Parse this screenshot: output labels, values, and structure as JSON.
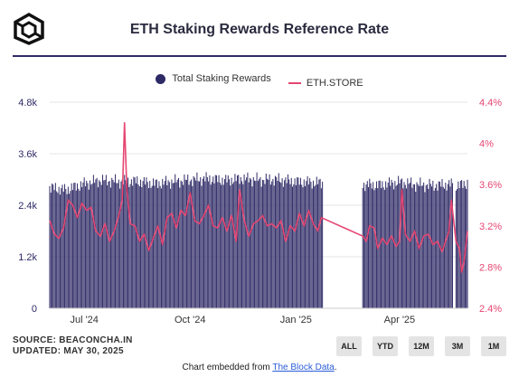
{
  "header": {
    "title": "ETH Staking Rewards Reference Rate"
  },
  "legend": {
    "bars_label": "Total Staking Rewards",
    "line_label": "ETH.STORE"
  },
  "colors": {
    "bars": "#2e2a66",
    "line": "#e64672",
    "left_axis": "#2e2a66",
    "right_axis": "#e64672"
  },
  "footer": {
    "source": "SOURCE: BEACONCHA.IN",
    "updated": "UPDATED: MAY 30, 2025",
    "embed_prefix": "Chart embedded from ",
    "embed_link": "The Block Data",
    "embed_suffix": "."
  },
  "range_buttons": [
    "ALL",
    "YTD",
    "12M",
    "3M",
    "1M"
  ],
  "chart_data": {
    "type": "bar",
    "x_start": "2024-06-01",
    "x_end": "2025-05-30",
    "x_ticks": [
      {
        "date": "2024-07-01",
        "label": "Jul '24"
      },
      {
        "date": "2024-10-01",
        "label": "Oct '24"
      },
      {
        "date": "2025-01-01",
        "label": "Jan '25"
      },
      {
        "date": "2025-04-01",
        "label": "Apr '25"
      }
    ],
    "y_left": {
      "ticks": [
        "0",
        "1.2k",
        "2.4k",
        "3.6k",
        "4.8k"
      ],
      "range": [
        0,
        4800
      ]
    },
    "y_right": {
      "ticks": [
        "2.4%",
        "2.8%",
        "3.2%",
        "3.6%",
        "4%",
        "4.4%"
      ],
      "range": [
        2.4,
        4.4
      ]
    },
    "grid": true,
    "legend_position": "top-center",
    "gaps": [
      {
        "from": "2025-01-24",
        "to": "2025-02-28"
      },
      {
        "from": "2025-05-17",
        "to": "2025-05-20"
      }
    ],
    "bars_series": {
      "name": "Total Staking Rewards",
      "anchors": [
        [
          "2024-06-01",
          2810
        ],
        [
          "2024-06-15",
          2760
        ],
        [
          "2024-07-01",
          2900
        ],
        [
          "2024-07-15",
          2980
        ],
        [
          "2024-08-01",
          2950
        ],
        [
          "2024-08-15",
          2960
        ],
        [
          "2024-09-01",
          2900
        ],
        [
          "2024-09-15",
          2950
        ],
        [
          "2024-10-01",
          2990
        ],
        [
          "2024-10-15",
          3020
        ],
        [
          "2024-11-01",
          2980
        ],
        [
          "2024-11-15",
          3020
        ],
        [
          "2024-12-01",
          2990
        ],
        [
          "2024-12-15",
          3000
        ],
        [
          "2025-01-01",
          2950
        ],
        [
          "2025-01-23",
          2920
        ],
        [
          "2025-03-01",
          2880
        ],
        [
          "2025-03-15",
          2870
        ],
        [
          "2025-04-01",
          2940
        ],
        [
          "2025-04-15",
          2880
        ],
        [
          "2025-05-01",
          2860
        ],
        [
          "2025-05-16",
          2890
        ],
        [
          "2025-05-21",
          2850
        ],
        [
          "2025-05-30",
          2920
        ]
      ]
    },
    "line_series": {
      "name": "ETH.STORE",
      "points": [
        [
          "2024-06-01",
          3.25
        ],
        [
          "2024-06-05",
          3.12
        ],
        [
          "2024-06-09",
          3.08
        ],
        [
          "2024-06-13",
          3.18
        ],
        [
          "2024-06-17",
          3.45
        ],
        [
          "2024-06-21",
          3.4
        ],
        [
          "2024-06-25",
          3.28
        ],
        [
          "2024-06-29",
          3.42
        ],
        [
          "2024-07-03",
          3.35
        ],
        [
          "2024-07-07",
          3.38
        ],
        [
          "2024-07-11",
          3.15
        ],
        [
          "2024-07-15",
          3.1
        ],
        [
          "2024-07-19",
          3.22
        ],
        [
          "2024-07-23",
          3.05
        ],
        [
          "2024-07-27",
          3.15
        ],
        [
          "2024-07-31",
          3.3
        ],
        [
          "2024-08-03",
          3.45
        ],
        [
          "2024-08-05",
          4.2
        ],
        [
          "2024-08-07",
          3.55
        ],
        [
          "2024-08-10",
          3.22
        ],
        [
          "2024-08-14",
          3.2
        ],
        [
          "2024-08-18",
          3.05
        ],
        [
          "2024-08-22",
          3.12
        ],
        [
          "2024-08-26",
          2.96
        ],
        [
          "2024-08-30",
          3.08
        ],
        [
          "2024-09-03",
          3.2
        ],
        [
          "2024-09-07",
          3.02
        ],
        [
          "2024-09-11",
          3.28
        ],
        [
          "2024-09-15",
          3.32
        ],
        [
          "2024-09-19",
          3.18
        ],
        [
          "2024-09-23",
          3.35
        ],
        [
          "2024-09-27",
          3.3
        ],
        [
          "2024-10-01",
          3.52
        ],
        [
          "2024-10-05",
          3.25
        ],
        [
          "2024-10-09",
          3.22
        ],
        [
          "2024-10-13",
          3.3
        ],
        [
          "2024-10-17",
          3.4
        ],
        [
          "2024-10-21",
          3.2
        ],
        [
          "2024-10-25",
          3.18
        ],
        [
          "2024-10-29",
          3.28
        ],
        [
          "2024-11-02",
          3.15
        ],
        [
          "2024-11-06",
          3.3
        ],
        [
          "2024-11-10",
          3.05
        ],
        [
          "2024-11-13",
          3.55
        ],
        [
          "2024-11-17",
          3.25
        ],
        [
          "2024-11-21",
          3.1
        ],
        [
          "2024-11-25",
          3.22
        ],
        [
          "2024-11-29",
          3.25
        ],
        [
          "2024-12-03",
          3.3
        ],
        [
          "2024-12-07",
          3.2
        ],
        [
          "2024-12-11",
          3.22
        ],
        [
          "2024-12-15",
          3.18
        ],
        [
          "2024-12-19",
          3.25
        ],
        [
          "2024-12-23",
          3.05
        ],
        [
          "2024-12-27",
          3.2
        ],
        [
          "2024-12-31",
          3.15
        ],
        [
          "2025-01-04",
          3.32
        ],
        [
          "2025-01-08",
          3.2
        ],
        [
          "2025-01-12",
          3.35
        ],
        [
          "2025-01-16",
          3.22
        ],
        [
          "2025-01-20",
          3.15
        ],
        [
          "2025-01-23",
          3.28
        ],
        [
          "2025-02-28",
          3.1
        ],
        [
          "2025-03-03",
          3.05
        ],
        [
          "2025-03-06",
          3.2
        ],
        [
          "2025-03-10",
          3.18
        ],
        [
          "2025-03-13",
          2.98
        ],
        [
          "2025-03-17",
          3.08
        ],
        [
          "2025-03-21",
          3.02
        ],
        [
          "2025-03-25",
          3.1
        ],
        [
          "2025-03-29",
          3.0
        ],
        [
          "2025-04-01",
          3.05
        ],
        [
          "2025-04-03",
          3.55
        ],
        [
          "2025-04-06",
          3.12
        ],
        [
          "2025-04-10",
          3.05
        ],
        [
          "2025-04-14",
          3.15
        ],
        [
          "2025-04-18",
          2.98
        ],
        [
          "2025-04-22",
          3.1
        ],
        [
          "2025-04-26",
          3.12
        ],
        [
          "2025-04-30",
          3.02
        ],
        [
          "2025-05-04",
          3.05
        ],
        [
          "2025-05-08",
          2.95
        ],
        [
          "2025-05-11",
          3.05
        ],
        [
          "2025-05-14",
          3.15
        ],
        [
          "2025-05-16",
          3.45
        ],
        [
          "2025-05-20",
          3.05
        ],
        [
          "2025-05-23",
          2.98
        ],
        [
          "2025-05-25",
          2.75
        ],
        [
          "2025-05-27",
          2.85
        ],
        [
          "2025-05-30",
          3.15
        ]
      ]
    }
  }
}
